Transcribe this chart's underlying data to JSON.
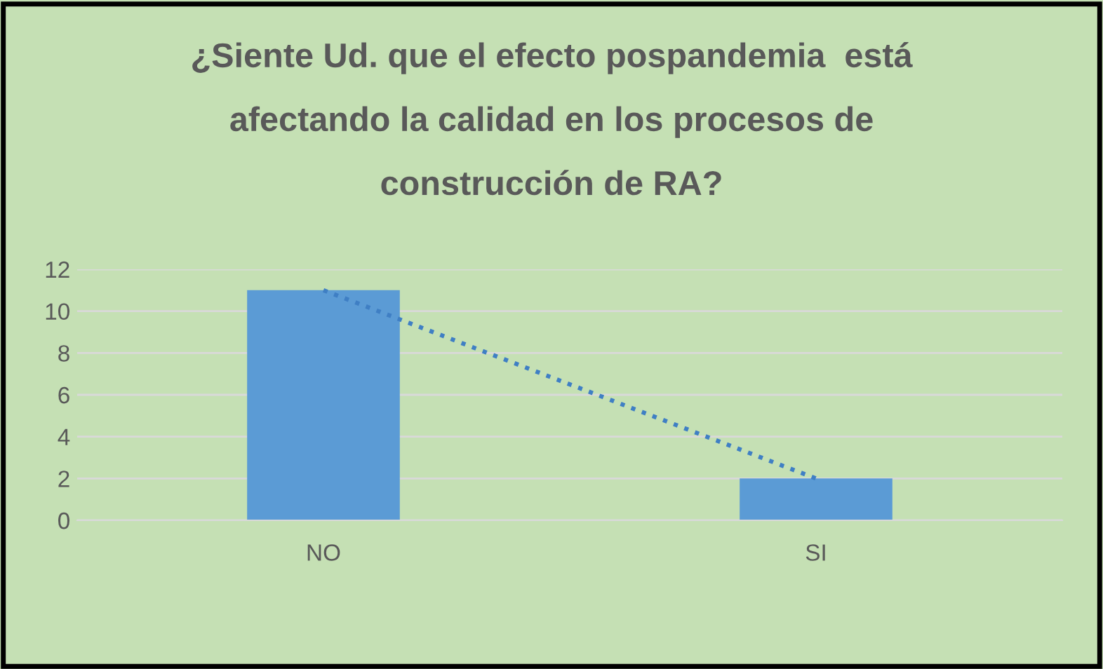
{
  "chart_data": {
    "type": "bar",
    "title": "¿Siente Ud. que el efecto pospandemia  está\nafectando la calidad en los procesos de\nconstrucción de RA?",
    "categories": [
      "NO",
      "SI"
    ],
    "series": [
      {
        "values": [
          11,
          2
        ],
        "color": "#5b9bd5"
      },
      {
        "type": "line",
        "values": [
          11,
          2
        ],
        "color": "#3f7fc4",
        "line_style": "dotted"
      }
    ],
    "ylim": [
      0,
      12
    ],
    "yticks": [
      0,
      2,
      4,
      6,
      8,
      10,
      12
    ],
    "grid": "y"
  }
}
